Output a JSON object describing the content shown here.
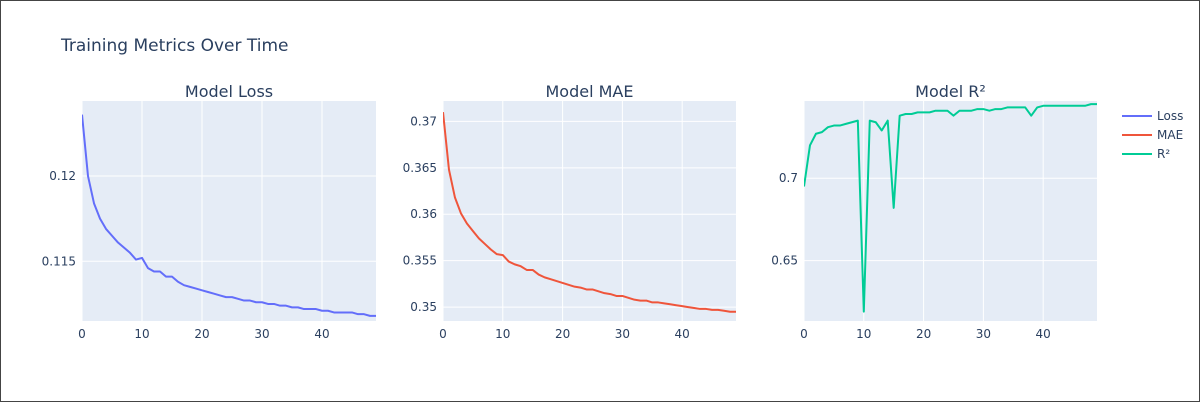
{
  "title": "Training Metrics Over Time",
  "colors": {
    "plot_bg": "#e5ecf6",
    "grid": "#ffffff",
    "text": "#2a3f5f"
  },
  "legend": [
    {
      "label": "Loss",
      "color": "#636efa"
    },
    {
      "label": "MAE",
      "color": "#ef553b"
    },
    {
      "label": "R²",
      "color": "#00cc96"
    }
  ],
  "chart_data": [
    {
      "type": "line",
      "title": "Model Loss",
      "xlabel": "",
      "ylabel": "",
      "xlim": [
        0,
        49
      ],
      "ylim": [
        0.1115,
        0.1244
      ],
      "xticks": [
        0,
        10,
        20,
        30,
        40
      ],
      "yticks": [
        0.115,
        0.12
      ],
      "ytick_labels": [
        "0.115",
        "0.12"
      ],
      "grid": true,
      "series": [
        {
          "name": "Loss",
          "color": "#636efa",
          "x": [
            0,
            1,
            2,
            3,
            4,
            5,
            6,
            7,
            8,
            9,
            10,
            11,
            12,
            13,
            14,
            15,
            16,
            17,
            18,
            19,
            20,
            21,
            22,
            23,
            24,
            25,
            26,
            27,
            28,
            29,
            30,
            31,
            32,
            33,
            34,
            35,
            36,
            37,
            38,
            39,
            40,
            41,
            42,
            43,
            44,
            45,
            46,
            47,
            48,
            49
          ],
          "y": [
            0.1236,
            0.12,
            0.1184,
            0.1175,
            0.1169,
            0.1165,
            0.1161,
            0.1158,
            0.1155,
            0.1151,
            0.1152,
            0.1146,
            0.1144,
            0.1144,
            0.1141,
            0.1141,
            0.1138,
            0.1136,
            0.1135,
            0.1134,
            0.1133,
            0.1132,
            0.1131,
            0.113,
            0.1129,
            0.1129,
            0.1128,
            0.1127,
            0.1127,
            0.1126,
            0.1126,
            0.1125,
            0.1125,
            0.1124,
            0.1124,
            0.1123,
            0.1123,
            0.1122,
            0.1122,
            0.1122,
            0.1121,
            0.1121,
            0.112,
            0.112,
            0.112,
            0.112,
            0.1119,
            0.1119,
            0.1118,
            0.1118
          ]
        }
      ]
    },
    {
      "type": "line",
      "title": "Model MAE",
      "xlabel": "",
      "ylabel": "",
      "xlim": [
        0,
        49
      ],
      "ylim": [
        0.3485,
        0.3722
      ],
      "xticks": [
        0,
        10,
        20,
        30,
        40
      ],
      "yticks": [
        0.35,
        0.355,
        0.36,
        0.365,
        0.37
      ],
      "ytick_labels": [
        "0.35",
        "0.355",
        "0.36",
        "0.365",
        "0.37"
      ],
      "grid": true,
      "series": [
        {
          "name": "MAE",
          "color": "#ef553b",
          "x": [
            0,
            1,
            2,
            3,
            4,
            5,
            6,
            7,
            8,
            9,
            10,
            11,
            12,
            13,
            14,
            15,
            16,
            17,
            18,
            19,
            20,
            21,
            22,
            23,
            24,
            25,
            26,
            27,
            28,
            29,
            30,
            31,
            32,
            33,
            34,
            35,
            36,
            37,
            38,
            39,
            40,
            41,
            42,
            43,
            44,
            45,
            46,
            47,
            48,
            49
          ],
          "y": [
            0.371,
            0.3648,
            0.3618,
            0.3601,
            0.359,
            0.3582,
            0.3574,
            0.3568,
            0.3562,
            0.3557,
            0.3556,
            0.3549,
            0.3546,
            0.3544,
            0.354,
            0.354,
            0.3535,
            0.3532,
            0.353,
            0.3528,
            0.3526,
            0.3524,
            0.3522,
            0.3521,
            0.3519,
            0.3519,
            0.3517,
            0.3515,
            0.3514,
            0.3512,
            0.3512,
            0.351,
            0.3508,
            0.3507,
            0.3507,
            0.3505,
            0.3505,
            0.3504,
            0.3503,
            0.3502,
            0.3501,
            0.35,
            0.3499,
            0.3498,
            0.3498,
            0.3497,
            0.3497,
            0.3496,
            0.3495,
            0.3495
          ]
        }
      ]
    },
    {
      "type": "line",
      "title": "Model R²",
      "xlabel": "",
      "ylabel": "",
      "xlim": [
        0,
        49
      ],
      "ylim": [
        0.6133,
        0.7469
      ],
      "xticks": [
        0,
        10,
        20,
        30,
        40
      ],
      "yticks": [
        0.65,
        0.7
      ],
      "ytick_labels": [
        "0.65",
        "0.7"
      ],
      "grid": true,
      "series": [
        {
          "name": "R²",
          "color": "#00cc96",
          "x": [
            0,
            1,
            2,
            3,
            4,
            5,
            6,
            7,
            8,
            9,
            10,
            11,
            12,
            13,
            14,
            15,
            16,
            17,
            18,
            19,
            20,
            21,
            22,
            23,
            24,
            25,
            26,
            27,
            28,
            29,
            30,
            31,
            32,
            33,
            34,
            35,
            36,
            37,
            38,
            39,
            40,
            41,
            42,
            43,
            44,
            45,
            46,
            47,
            48,
            49
          ],
          "y": [
            0.695,
            0.72,
            0.727,
            0.728,
            0.731,
            0.732,
            0.732,
            0.733,
            0.734,
            0.735,
            0.619,
            0.735,
            0.734,
            0.729,
            0.735,
            0.682,
            0.738,
            0.739,
            0.739,
            0.74,
            0.74,
            0.74,
            0.741,
            0.741,
            0.741,
            0.738,
            0.741,
            0.741,
            0.741,
            0.742,
            0.742,
            0.741,
            0.742,
            0.742,
            0.743,
            0.743,
            0.743,
            0.743,
            0.738,
            0.743,
            0.744,
            0.744,
            0.744,
            0.744,
            0.744,
            0.744,
            0.744,
            0.744,
            0.745,
            0.745
          ]
        }
      ]
    }
  ]
}
